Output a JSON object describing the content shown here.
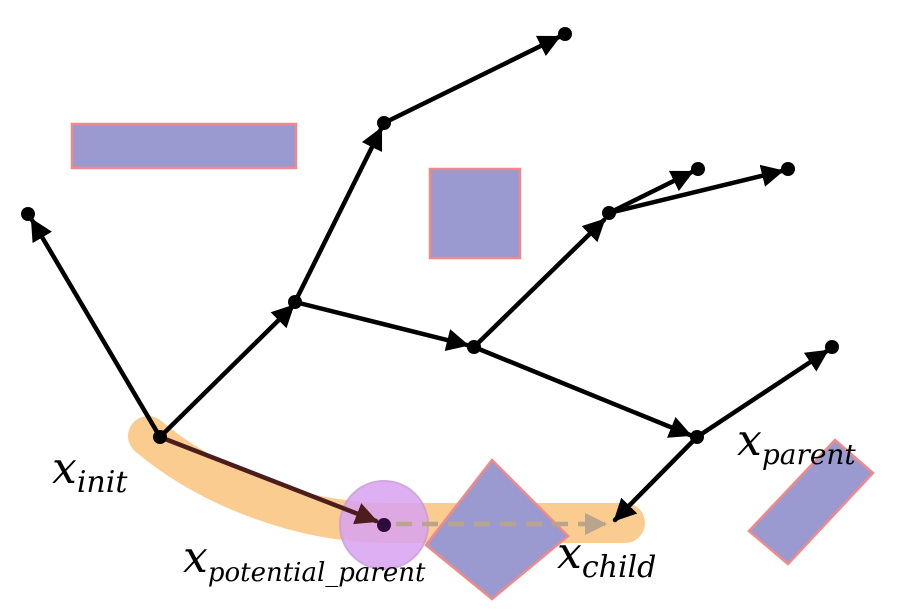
{
  "colors": {
    "obstacle_fill": "#9a99d0",
    "obstacle_stroke": "#f08a8a",
    "highlight": "#fbc98a",
    "circle_fill": "#d9a3f2",
    "circle_stroke": "#c89ad8",
    "edge": "#000000",
    "new_edge": "#4d1d1d",
    "dashed": "#b9a48c"
  },
  "labels": {
    "x_init": {
      "base": "x",
      "sub": "init"
    },
    "x_parent": {
      "base": "x",
      "sub": "parent"
    },
    "x_potential_parent": {
      "base": "x",
      "sub": "potential_parent"
    },
    "x_child": {
      "base": "x",
      "sub": "child"
    }
  }
}
